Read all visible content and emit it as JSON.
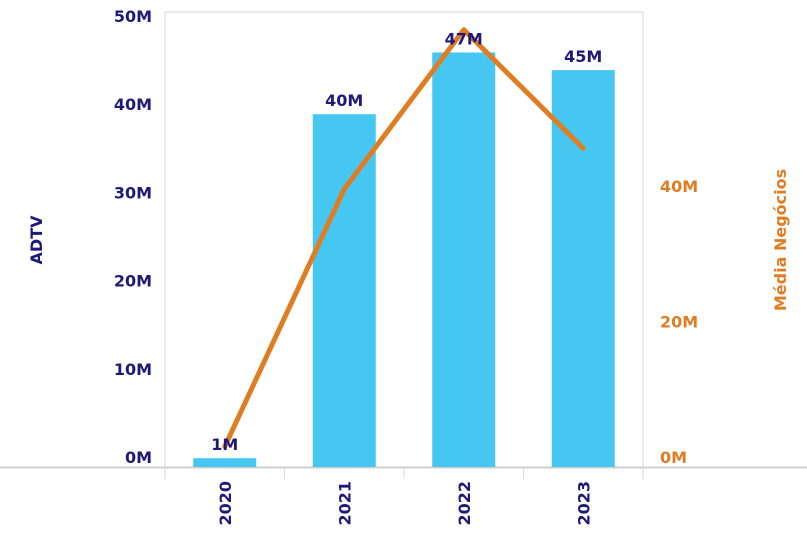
{
  "chart_data": {
    "type": "bar",
    "categories": [
      "2020",
      "2021",
      "2022",
      "2023"
    ],
    "series": [
      {
        "name": "ADTV",
        "type": "bar",
        "axis": "left",
        "values": [
          1,
          40,
          47,
          45
        ],
        "labels": [
          "1M",
          "40M",
          "47M",
          "45M"
        ]
      },
      {
        "name": "Média Negócios",
        "type": "line",
        "axis": "right",
        "values": [
          3,
          41,
          64.5,
          47
        ]
      }
    ],
    "ylabel": "ADTV",
    "y2label": "Média Negócios",
    "ylim": [
      0,
      51.5
    ],
    "y2lim": [
      0,
      66
    ],
    "yticks": [
      0,
      10,
      20,
      30,
      40,
      50
    ],
    "yticklabels": [
      "0M",
      "10M",
      "20M",
      "30M",
      "40M",
      "50M"
    ],
    "y2ticks": [
      0,
      20,
      40
    ],
    "y2ticklabels": [
      "0M",
      "20M",
      "40M"
    ],
    "colors": {
      "bar": "#46c7f2",
      "line": "#e07d22",
      "left_axis_text": "#1f1a7a",
      "right_axis_text": "#e07d22",
      "frame": "#d9d9d9"
    },
    "grid": false
  }
}
